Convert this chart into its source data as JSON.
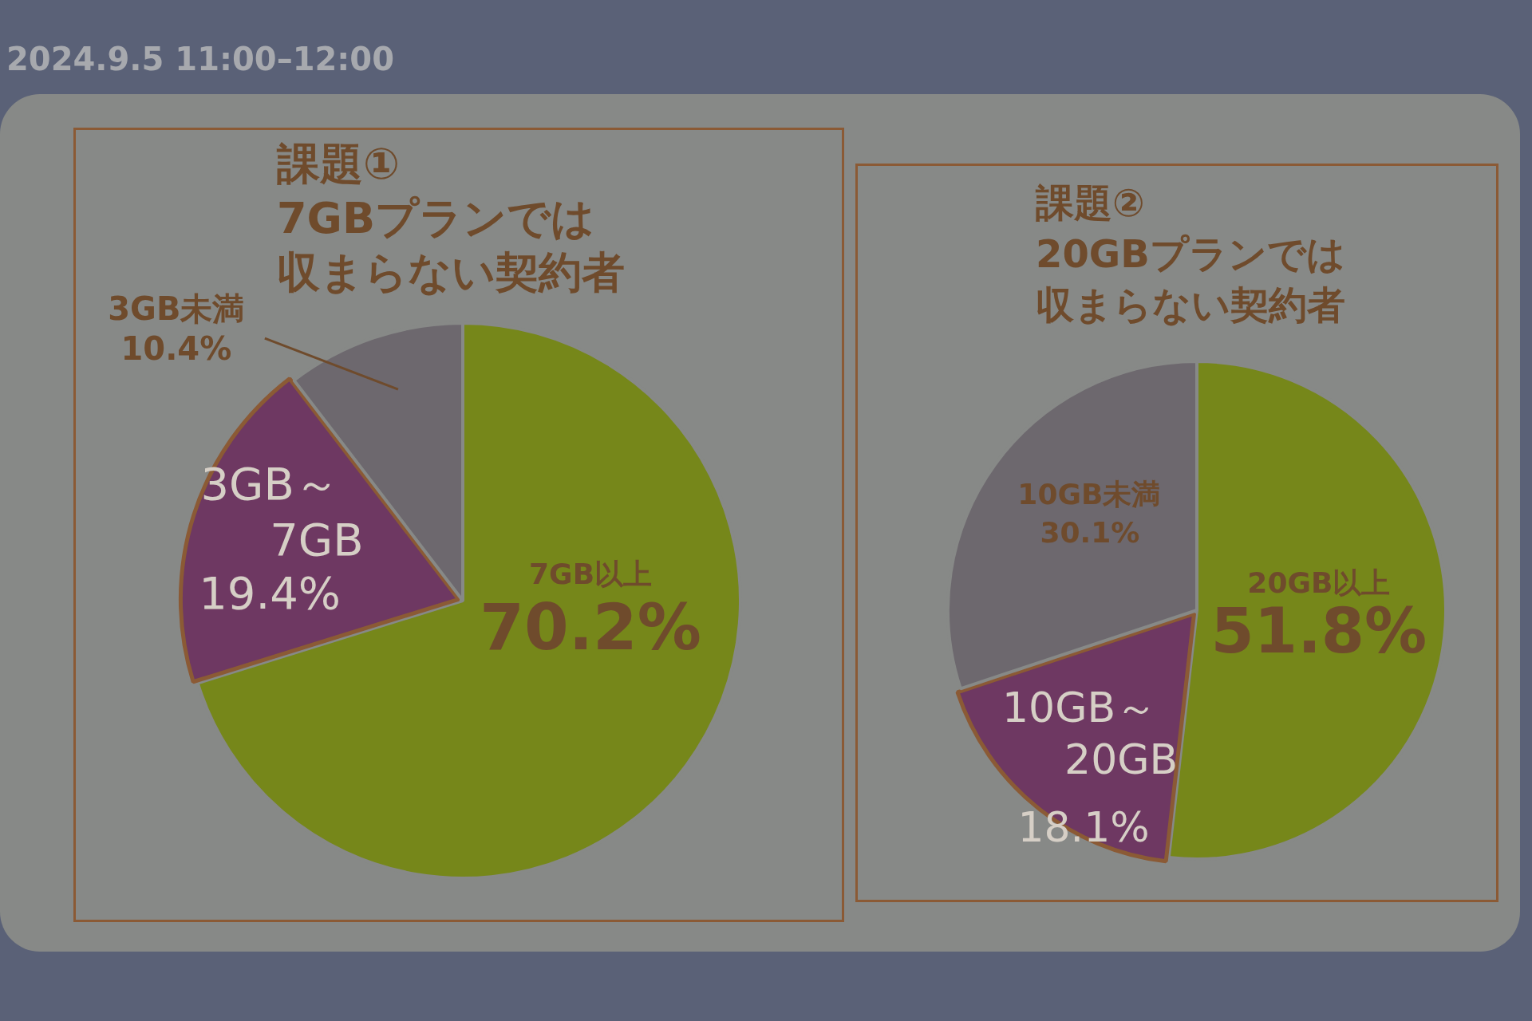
{
  "chart_data": [
    {
      "type": "pie",
      "title": "課題①",
      "subtitle": "7GBプランでは収まらない契約者",
      "categories": [
        "7GB以上",
        "3GB～7GB",
        "3GB未満"
      ],
      "values": [
        70.2,
        19.4,
        10.4
      ],
      "colors": [
        "#76871a",
        "#6e3862",
        "#6d686e"
      ],
      "value_labels": [
        "70.2%",
        "19.4%",
        "10.4%"
      ],
      "annotations": [
        "2024.9.5 11:00–12:00"
      ]
    },
    {
      "type": "pie",
      "title": "課題②",
      "subtitle": "20GBプランでは収まらない契約者",
      "categories": [
        "20GB以上",
        "10GB～20GB",
        "10GB未満"
      ],
      "values": [
        51.8,
        18.1,
        30.1
      ],
      "colors": [
        "#76871a",
        "#6e3862",
        "#6d686e"
      ],
      "value_labels": [
        "51.8%",
        "18.1%",
        "30.1%"
      ]
    }
  ]
}
